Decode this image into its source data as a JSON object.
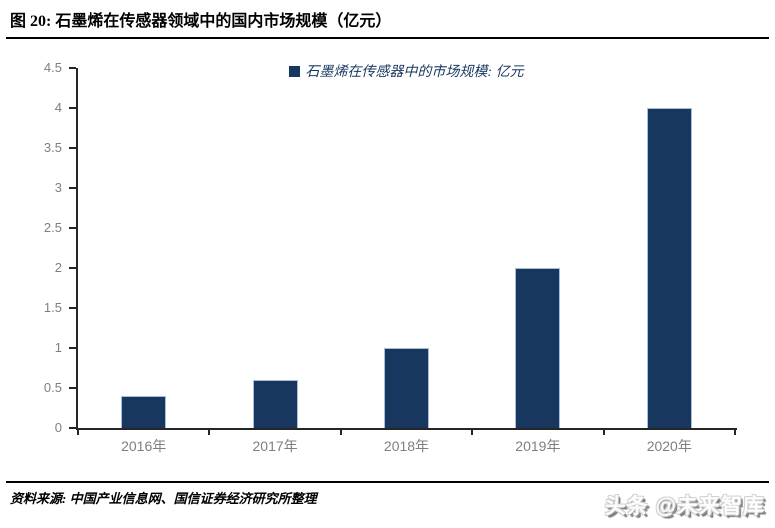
{
  "header": {
    "title": "图 20: 石墨烯在传感器领域中的国内市场规模（亿元）"
  },
  "chart_data": {
    "type": "bar",
    "title": "",
    "legend": "石墨烯在传感器中的市场规模: 亿元",
    "categories": [
      "2016年",
      "2017年",
      "2018年",
      "2019年",
      "2020年"
    ],
    "values": [
      0.4,
      0.6,
      1,
      2,
      4
    ],
    "xlabel": "",
    "ylabel": "",
    "ylim": [
      0,
      4.5
    ],
    "ytick_step": 0.5,
    "grid": false,
    "legend_position": "top-center",
    "colors": {
      "bar_fill": "#17375E",
      "bar_border": "#A8BFDC",
      "axis": "#262626",
      "tick_label": "#7F7F7F",
      "legend_text": "#17375E"
    }
  },
  "footer": {
    "source": "资料来源: 中国产业信息网、国信证券经济研究所整理",
    "watermark": "头条 @未来智库"
  }
}
